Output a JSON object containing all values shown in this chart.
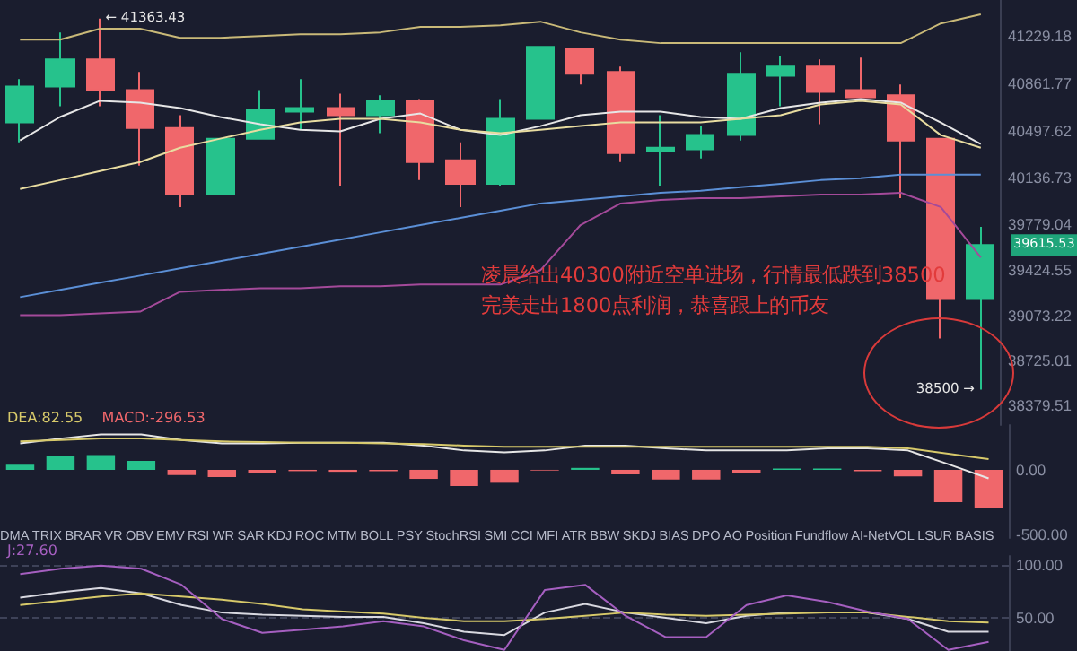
{
  "chart_data": [
    {
      "type": "candlestick",
      "categories": [
        null,
        null,
        null,
        null,
        null,
        null,
        null,
        null,
        null,
        null,
        null,
        null,
        null,
        null,
        null,
        null,
        null,
        null,
        null,
        null,
        null,
        null,
        null,
        null,
        null
      ],
      "ohlc": [
        [
          40562,
          40896,
          40409,
          40840
        ],
        [
          40840,
          41257,
          40687,
          41048
        ],
        [
          41048,
          41363.43,
          40687,
          40812
        ],
        [
          40812,
          40951,
          40228,
          40520
        ],
        [
          40520,
          40618,
          39909,
          40006
        ],
        [
          40006,
          40437,
          40006,
          40437
        ],
        [
          40437,
          40812,
          40437,
          40659
        ],
        [
          40645,
          40896,
          40506,
          40673
        ],
        [
          40673,
          40784,
          40075,
          40618
        ],
        [
          40618,
          40771,
          40479,
          40729
        ],
        [
          40729,
          40743,
          40117,
          40256
        ],
        [
          40270,
          40409,
          39909,
          40089
        ],
        [
          40089,
          40743,
          40075,
          40590
        ],
        [
          40590,
          41146,
          40590,
          41146
        ],
        [
          41132,
          41132,
          40854,
          40937
        ],
        [
          40951,
          40993,
          40256,
          40326
        ],
        [
          40340,
          40618,
          40075,
          40367
        ],
        [
          40354,
          40534,
          40284,
          40465
        ],
        [
          40465,
          41104,
          40423,
          40937
        ],
        [
          40923,
          41076,
          40687,
          40993
        ],
        [
          40993,
          41048,
          40548,
          40798
        ],
        [
          40812,
          41062,
          40757,
          40757
        ],
        [
          40771,
          40854,
          39978,
          40423
        ],
        [
          40437,
          40437,
          38894,
          39200
        ],
        [
          39200,
          39756,
          38500,
          39615.53
        ]
      ],
      "colors": [
        "#26c28c",
        "#26c28c",
        "#f0676b",
        "#f0676b",
        "#f0676b",
        "#26c28c",
        "#26c28c",
        "#26c28c",
        "#f0676b",
        "#26c28c",
        "#f0676b",
        "#f0676b",
        "#26c28c",
        "#26c28c",
        "#f0676b",
        "#f0676b",
        "#26c28c",
        "#26c28c",
        "#26c28c",
        "#26c28c",
        "#f0676b",
        "#f0676b",
        "#f0676b",
        "#f0676b",
        "#26c28c"
      ],
      "series": [
        {
          "type": "line",
          "color": "#c9b978",
          "values": [
            41201,
            41201,
            41285,
            41285,
            41215,
            41215,
            41229,
            41243,
            41243,
            41257,
            41299,
            41299,
            41312,
            41340,
            41257,
            41201,
            41174,
            41174,
            41174,
            41174,
            41174,
            41174,
            41174,
            41326,
            41396
          ]
        },
        {
          "type": "line",
          "color": "#e6e6e6",
          "values": [
            40423,
            40604,
            40729,
            40715,
            40673,
            40604,
            40548,
            40506,
            40493,
            40590,
            40631,
            40506,
            40465,
            40534,
            40618,
            40645,
            40645,
            40604,
            40590,
            40673,
            40715,
            40743,
            40715,
            40562,
            40395
          ]
        },
        {
          "type": "line",
          "color": "#e8dca0",
          "values": [
            40048,
            40117,
            40187,
            40256,
            40367,
            40437,
            40506,
            40562,
            40590,
            40590,
            40562,
            40506,
            40479,
            40506,
            40534,
            40562,
            40562,
            40562,
            40590,
            40618,
            40701,
            40729,
            40701,
            40465,
            40367
          ]
        },
        {
          "type": "line",
          "color": "#5b8fd6",
          "values": [
            39214,
            39270,
            39325,
            39380,
            39436,
            39492,
            39547,
            39603,
            39658,
            39714,
            39770,
            39825,
            39881,
            39937,
            39964,
            39992,
            40020,
            40034,
            40062,
            40089,
            40117,
            40131,
            40159,
            40159,
            40159
          ]
        },
        {
          "type": "line",
          "color": "#a44a9a",
          "values": [
            39075,
            39075,
            39088,
            39102,
            39255,
            39270,
            39283,
            39283,
            39297,
            39297,
            39311,
            39311,
            39311,
            39422,
            39770,
            39937,
            39964,
            39978,
            39978,
            39992,
            40006,
            40006,
            40020,
            39909,
            39520
          ]
        }
      ],
      "ylim": [
        38227,
        41507
      ],
      "yticks": [
        41229.18,
        40861.77,
        40497.62,
        40136.73,
        39779.04,
        39424.55,
        39073.22,
        38725.01,
        38379.51
      ],
      "tick_labels": "y",
      "marker": "none",
      "grid": false,
      "annotations": [
        "凌晨给出40300附近空单进场，行情最低跌到38500",
        "完美走出1800点利润，恭喜跟上的币友",
        "← 41363.43",
        "38500 →",
        "39615.53"
      ]
    },
    {
      "type": "bar",
      "categories": [
        null,
        null,
        null,
        null,
        null,
        null,
        null,
        null,
        null,
        null,
        null,
        null,
        null,
        null,
        null,
        null,
        null,
        null,
        null,
        null,
        null,
        null,
        null,
        null,
        null
      ],
      "series": [
        {
          "type": "bar",
          "values": [
            40,
            110,
            115,
            70,
            -40,
            -55,
            -25,
            -10,
            -15,
            -10,
            -70,
            -125,
            -100,
            -5,
            15,
            -35,
            -75,
            -75,
            -25,
            10,
            10,
            -10,
            -50,
            -250,
            -296.53
          ],
          "colors": [
            "#26c28c",
            "#26c28c",
            "#26c28c",
            "#26c28c",
            "#f0676b",
            "#f0676b",
            "#f0676b",
            "#f0676b",
            "#f0676b",
            "#f0676b",
            "#f0676b",
            "#f0676b",
            "#f0676b",
            "#f0676b",
            "#26c28c",
            "#f0676b",
            "#f0676b",
            "#f0676b",
            "#f0676b",
            "#26c28c",
            "#26c28c",
            "#f0676b",
            "#f0676b",
            "#f0676b",
            "#f0676b"
          ]
        },
        {
          "type": "line",
          "color": "#e6e6e6",
          "values": [
            204,
            242,
            274,
            274,
            231,
            204,
            204,
            210,
            210,
            210,
            188,
            150,
            135,
            150,
            188,
            188,
            167,
            150,
            150,
            150,
            167,
            167,
            150,
            44,
            -66
          ]
        },
        {
          "type": "line",
          "color": "#d7c96a",
          "values": [
            220,
            231,
            242,
            242,
            231,
            220,
            215,
            210,
            210,
            204,
            199,
            188,
            178,
            178,
            178,
            178,
            178,
            178,
            178,
            178,
            178,
            178,
            167,
            124,
            82.55
          ]
        }
      ],
      "ylim": [
        -528,
        347
      ],
      "yticks": [
        {
          "value": 0,
          "label": "0.00"
        },
        {
          "value": -500,
          "label": "-500.00"
        }
      ],
      "tick_labels": "y",
      "marker": "none",
      "grid": false,
      "annotations": [
        "DEA:82.55",
        "MACD:-296.53"
      ]
    },
    {
      "type": "other",
      "annotations": [
        "DMA",
        "TRIX",
        "BRAR",
        "VR",
        "OBV",
        "EMV",
        "RSI",
        "WR",
        "SAR",
        "KDJ",
        "ROC",
        "MTM",
        "BOLL",
        "PSY",
        "StochRSI",
        "SMI",
        "CCI",
        "MFI",
        "ATR",
        "BBW",
        "SKDJ",
        "BIAS",
        "DPO",
        "AO",
        "Position",
        "Fundflow",
        "AI-NetVOL",
        "LSUR",
        "BASIS"
      ]
    },
    {
      "type": "line",
      "categories": [
        null,
        null,
        null,
        null,
        null,
        null,
        null,
        null,
        null,
        null,
        null,
        null,
        null,
        null,
        null,
        null,
        null,
        null,
        null,
        null,
        null,
        null,
        null,
        null,
        null
      ],
      "series": [
        {
          "color": "#d8d8e0",
          "values": [
            69,
            74,
            78,
            73,
            62,
            55,
            53,
            52,
            51,
            51,
            45,
            37,
            34,
            55,
            63,
            55,
            50,
            45,
            52,
            55,
            55,
            55,
            49,
            37,
            37
          ]
        },
        {
          "color": "#d7c96a",
          "values": [
            62,
            66,
            70,
            73,
            70,
            67,
            63,
            58,
            56,
            54,
            50,
            47,
            47,
            49,
            52,
            55,
            53,
            52,
            53,
            54,
            55,
            55,
            51,
            47,
            45.56
          ]
        },
        {
          "color": "#a55fc0",
          "values": [
            91,
            96,
            99,
            96,
            81,
            49,
            36,
            39,
            42,
            47,
            42,
            29,
            20,
            76,
            81,
            52,
            32,
            32,
            62,
            71,
            65,
            56,
            49,
            20,
            27.6
          ]
        }
      ],
      "ylim": [
        19,
        108
      ],
      "yticks": [
        {
          "value": 100,
          "label": "100.00"
        },
        {
          "value": 50,
          "label": "50.00"
        }
      ],
      "tick_labels": "y",
      "marker": "none",
      "grid": "y",
      "line_style": "solid",
      "annotations": [
        "J:27.60"
      ]
    }
  ]
}
